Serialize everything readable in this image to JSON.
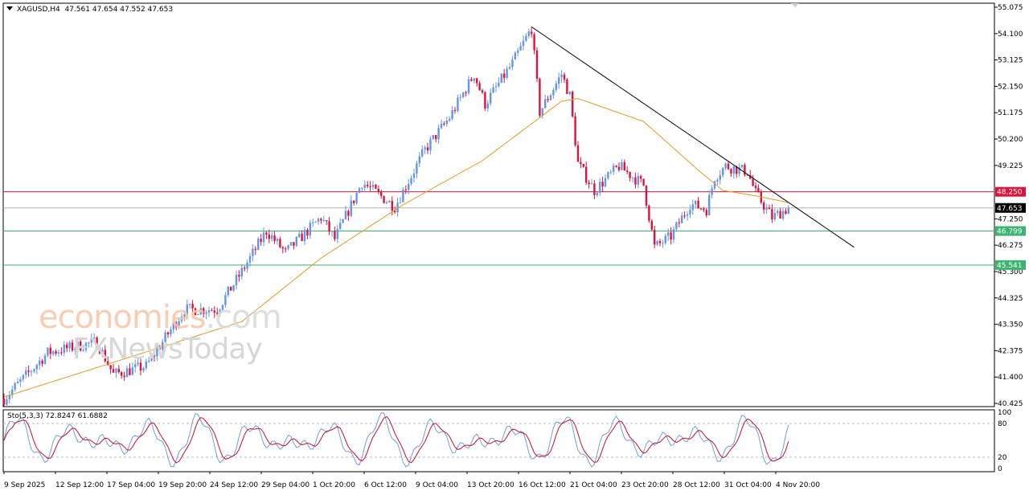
{
  "header": {
    "symbol": "XAGUSD,H4",
    "open": "47.561",
    "high": "47.654",
    "low": "47.552",
    "close": "47.653"
  },
  "indicator": {
    "label": "Sto(5,3,3)",
    "main": "72.8247",
    "signal": "61.6882"
  },
  "watermark": {
    "brand1": "economies",
    "brand1_suffix": ".com",
    "brand2": "FXNewsToday"
  },
  "chart_data": {
    "type": "candlestick",
    "title": "XAGUSD,H4",
    "ylim": [
      40.425,
      55.075
    ],
    "y_ticks": [
      "55.075",
      "54.100",
      "53.125",
      "52.150",
      "51.175",
      "50.200",
      "49.225",
      "47.250",
      "46.275",
      "45.300",
      "44.325",
      "43.350",
      "42.375",
      "41.400",
      "40.425"
    ],
    "x_ticks": [
      "9 Sep 2025",
      "12 Sep 12:00",
      "17 Sep 04:00",
      "19 Sep 20:00",
      "24 Sep 12:00",
      "29 Sep 04:00",
      "1 Oct 20:00",
      "6 Oct 12:00",
      "9 Oct 04:00",
      "13 Oct 20:00",
      "16 Oct 12:00",
      "21 Oct 04:00",
      "23 Oct 20:00",
      "28 Oct 12:00",
      "31 Oct 04:00",
      "4 Nov 20:00"
    ],
    "price_path": [
      [
        0,
        40.6
      ],
      [
        16,
        42.3
      ],
      [
        34,
        42.7
      ],
      [
        40,
        41.5
      ],
      [
        52,
        41.8
      ],
      [
        66,
        43.9
      ],
      [
        78,
        43.9
      ],
      [
        87,
        45.3
      ],
      [
        96,
        46.8
      ],
      [
        103,
        46.0
      ],
      [
        116,
        47.3
      ],
      [
        121,
        46.5
      ],
      [
        131,
        48.6
      ],
      [
        143,
        47.7
      ],
      [
        154,
        49.8
      ],
      [
        163,
        51.0
      ],
      [
        172,
        52.6
      ],
      [
        176,
        51.5
      ],
      [
        186,
        53.0
      ],
      [
        193,
        54.3
      ],
      [
        196,
        51.2
      ],
      [
        204,
        52.6
      ],
      [
        207,
        51.8
      ],
      [
        210,
        49.3
      ],
      [
        216,
        48.3
      ],
      [
        225,
        49.2
      ],
      [
        234,
        48.5
      ],
      [
        238,
        46.2
      ],
      [
        244,
        46.6
      ],
      [
        251,
        47.8
      ],
      [
        257,
        47.6
      ],
      [
        260,
        48.8
      ],
      [
        264,
        49.2
      ],
      [
        272,
        49.0
      ],
      [
        275,
        48.2
      ],
      [
        281,
        47.3
      ],
      [
        287,
        47.653
      ]
    ],
    "ma_path": [
      [
        0,
        40.66
      ],
      [
        87,
        43.45
      ],
      [
        116,
        45.8
      ],
      [
        146,
        47.77
      ],
      [
        175,
        49.4
      ],
      [
        204,
        51.6
      ],
      [
        210,
        51.7
      ],
      [
        234,
        50.85
      ],
      [
        254,
        49.05
      ],
      [
        263,
        48.3
      ],
      [
        275,
        48.1
      ],
      [
        287,
        47.85
      ]
    ],
    "trendline": [
      [
        193,
        54.35
      ],
      [
        311,
        46.2
      ]
    ],
    "levels": [
      {
        "value": "48.250",
        "color": "#dc143c"
      },
      {
        "value": "47.653",
        "color": "#000000",
        "line": "#b4b4b4"
      },
      {
        "value": "46.799",
        "color": "#3cb371"
      },
      {
        "value": "45.541",
        "color": "#3cb371"
      }
    ],
    "stoch_levels": [
      "100",
      "80",
      "20",
      "0"
    ],
    "colors": {
      "up": "#6495ed",
      "down": "#dc143c",
      "ma": "#e69a28",
      "stoch_main": "#6f9fd8",
      "stoch_signal": "#c8102e"
    }
  }
}
